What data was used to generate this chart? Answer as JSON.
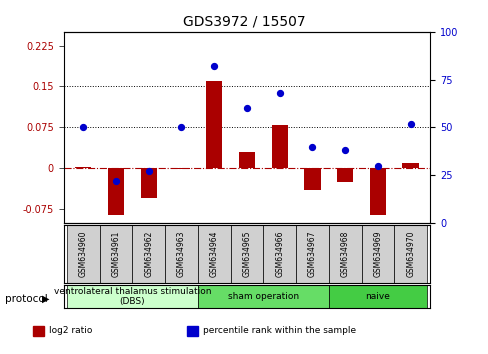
{
  "title": "GDS3972 / 15507",
  "samples": [
    "GSM634960",
    "GSM634961",
    "GSM634962",
    "GSM634963",
    "GSM634964",
    "GSM634965",
    "GSM634966",
    "GSM634967",
    "GSM634968",
    "GSM634969",
    "GSM634970"
  ],
  "log2_ratio": [
    0.002,
    -0.085,
    -0.055,
    -0.002,
    0.16,
    0.03,
    0.08,
    -0.04,
    -0.025,
    -0.085,
    0.01
  ],
  "percentile_rank": [
    50,
    22,
    27,
    50,
    82,
    60,
    68,
    40,
    38,
    30,
    52
  ],
  "bar_color": "#aa0000",
  "dot_color": "#0000cc",
  "ylim_left": [
    -0.1,
    0.25
  ],
  "ylim_right": [
    0,
    100
  ],
  "yticks_left": [
    -0.075,
    0,
    0.075,
    0.15,
    0.225
  ],
  "yticks_right": [
    0,
    25,
    50,
    75,
    100
  ],
  "hlines": [
    0.075,
    0.15
  ],
  "groups": [
    {
      "label": "ventrolateral thalamus stimulation\n(DBS)",
      "start": 0,
      "end": 3,
      "color": "#ccffcc"
    },
    {
      "label": "sham operation",
      "start": 4,
      "end": 7,
      "color": "#66dd66"
    },
    {
      "label": "naive",
      "start": 8,
      "end": 10,
      "color": "#44cc44"
    }
  ],
  "protocol_label": "protocol",
  "legend_items": [
    {
      "color": "#aa0000",
      "label": "log2 ratio"
    },
    {
      "color": "#0000cc",
      "label": "percentile rank within the sample"
    }
  ]
}
